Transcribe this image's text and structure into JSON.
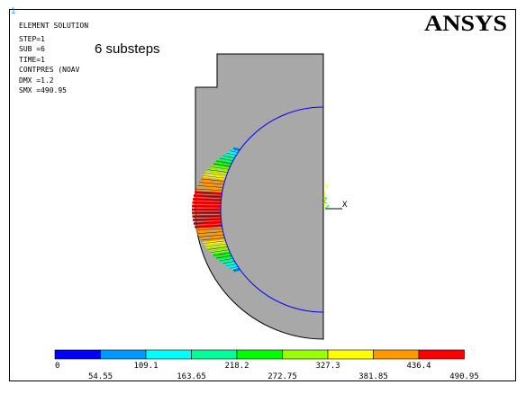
{
  "window_number": "1",
  "info": {
    "title": "ELEMENT SOLUTION",
    "step": "STEP=1",
    "sub": "SUB =6",
    "time": "TIME=1",
    "item": "CONTPRES (NOAV",
    "dmx": "DMX =1.2",
    "smx": "SMX =490.95"
  },
  "annotation": "6 substeps",
  "logo": "ANSYS",
  "triad": {
    "y": "Y",
    "z": "Z",
    "x": "X"
  },
  "legend": {
    "colors": [
      "#0000ff",
      "#0099ff",
      "#00ffff",
      "#00ff99",
      "#00ff00",
      "#99ff00",
      "#ffff00",
      "#ff9900",
      "#ff0000"
    ],
    "labels_top": [
      "0",
      "109.1",
      "218.2",
      "327.3",
      "436.4"
    ],
    "labels_bottom": [
      "54.55",
      "163.65",
      "272.75",
      "381.85",
      "490.95"
    ]
  }
}
